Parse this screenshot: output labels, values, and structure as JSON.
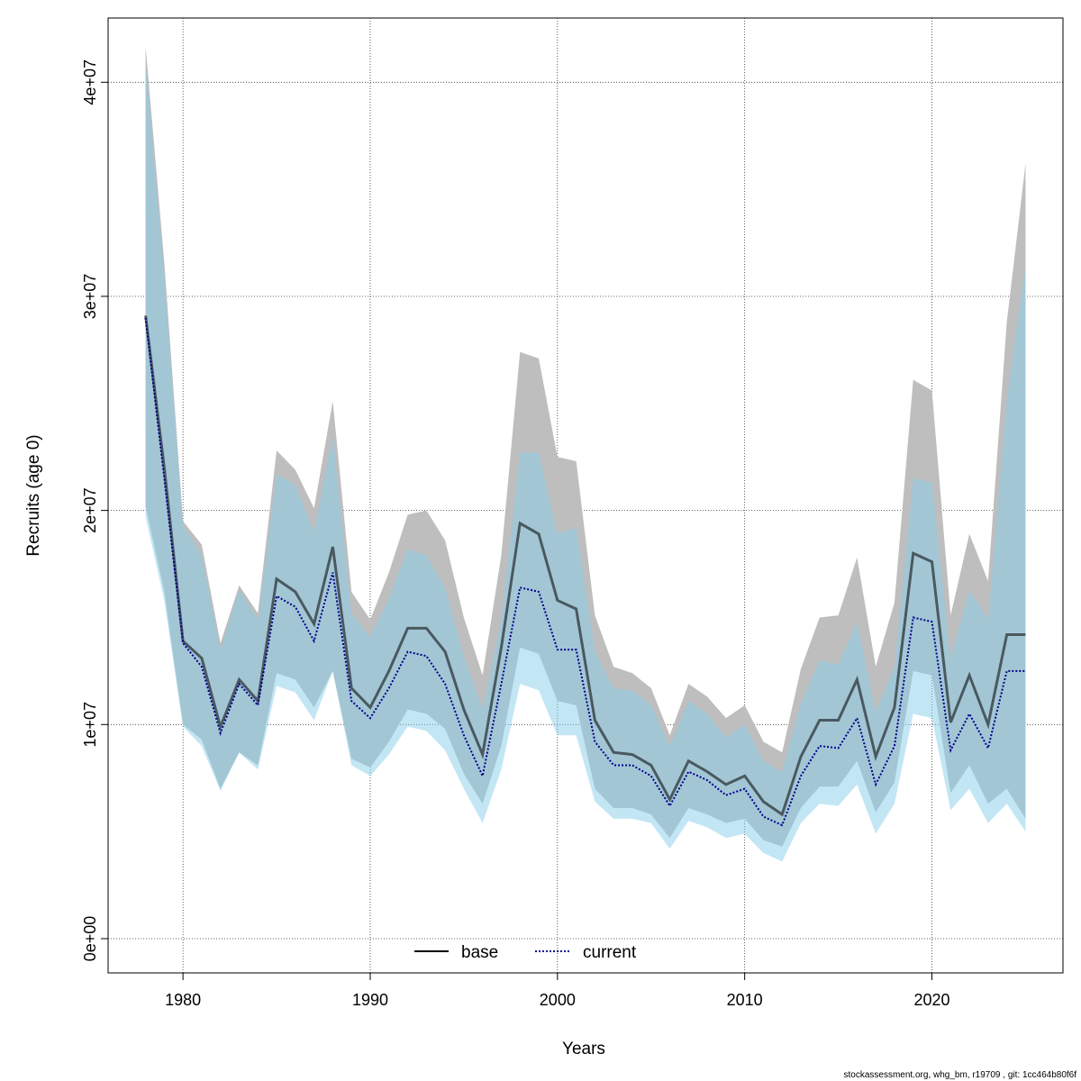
{
  "chart_data": {
    "type": "line",
    "title": "",
    "xlabel": "Years",
    "ylabel": "Recruits (age 0)",
    "xlim": [
      1976,
      2027
    ],
    "ylim": [
      -1600000.0,
      43000000.0
    ],
    "xticks": [
      1980,
      1990,
      2000,
      2010,
      2020
    ],
    "xtick_labels": [
      "1980",
      "1990",
      "2000",
      "2010",
      "2020"
    ],
    "yticks": [
      0,
      10000000,
      20000000,
      30000000,
      40000000
    ],
    "ytick_labels": [
      "0e+00",
      "1e+07",
      "2e+07",
      "3e+07",
      "4e+07"
    ],
    "grid": true,
    "legend_position": "bottom-center",
    "years": [
      1978,
      1979,
      1980,
      1981,
      1982,
      1983,
      1984,
      1985,
      1986,
      1987,
      1988,
      1989,
      1990,
      1991,
      1992,
      1993,
      1994,
      1995,
      1996,
      1997,
      1998,
      1999,
      2000,
      2001,
      2002,
      2003,
      2004,
      2005,
      2006,
      2007,
      2008,
      2009,
      2010,
      2011,
      2012,
      2013,
      2014,
      2015,
      2016,
      2017,
      2018,
      2019,
      2020,
      2021,
      2022,
      2023,
      2024,
      2025
    ],
    "unit_scale": 1000000,
    "series": [
      {
        "name": "base",
        "color": "#000000",
        "style": "solid",
        "values": [
          29.1,
          22.0,
          13.9,
          13.1,
          9.9,
          12.1,
          11.1,
          16.8,
          16.2,
          14.7,
          18.3,
          11.7,
          10.8,
          12.5,
          14.5,
          14.5,
          13.4,
          10.7,
          8.6,
          13.6,
          19.4,
          18.9,
          15.8,
          15.4,
          10.2,
          8.7,
          8.6,
          8.1,
          6.5,
          8.3,
          7.8,
          7.2,
          7.6,
          6.4,
          5.8,
          8.5,
          10.2,
          10.2,
          12.1,
          8.5,
          10.8,
          18.0,
          17.6,
          10.1,
          12.3,
          10.0,
          14.2,
          14.2
        ],
        "upper": [
          41.7,
          31.6,
          19.5,
          18.4,
          13.8,
          16.5,
          15.2,
          22.8,
          21.9,
          20.1,
          25.1,
          16.2,
          14.9,
          17.1,
          19.8,
          20.0,
          18.6,
          15.0,
          12.3,
          17.9,
          27.4,
          27.1,
          22.5,
          22.3,
          15.1,
          12.7,
          12.4,
          11.7,
          9.5,
          11.9,
          11.3,
          10.3,
          10.9,
          9.2,
          8.7,
          12.6,
          15.0,
          15.1,
          17.8,
          12.7,
          15.7,
          26.1,
          25.6,
          15.1,
          18.9,
          16.7,
          28.8,
          36.2
        ],
        "lower": [
          20.2,
          16.2,
          10.0,
          9.3,
          7.0,
          8.7,
          8.1,
          12.4,
          12.1,
          10.8,
          12.5,
          8.4,
          8.0,
          9.2,
          10.7,
          10.5,
          9.8,
          7.7,
          6.3,
          9.0,
          13.6,
          13.3,
          11.1,
          10.9,
          7.0,
          6.1,
          6.1,
          5.8,
          4.7,
          6.1,
          5.8,
          5.4,
          5.6,
          4.6,
          4.3,
          6.1,
          7.1,
          7.1,
          8.3,
          5.9,
          7.3,
          12.5,
          12.3,
          6.8,
          8.1,
          6.3,
          7.0,
          5.6
        ],
        "band_color": "#bebebe"
      },
      {
        "name": "current",
        "color": "#00008b",
        "style": "dotted",
        "values": [
          29.0,
          21.5,
          13.8,
          12.7,
          9.6,
          11.9,
          10.9,
          16.0,
          15.5,
          13.9,
          17.1,
          11.1,
          10.3,
          11.7,
          13.4,
          13.2,
          11.9,
          9.5,
          7.6,
          11.9,
          16.4,
          16.2,
          13.5,
          13.5,
          9.2,
          8.1,
          8.1,
          7.6,
          6.2,
          7.8,
          7.4,
          6.7,
          7.0,
          5.7,
          5.3,
          7.6,
          9.0,
          8.9,
          10.3,
          7.2,
          9.0,
          15.0,
          14.8,
          8.8,
          10.5,
          8.9,
          12.5,
          12.5
        ],
        "upper": [
          41.0,
          31.0,
          19.3,
          17.9,
          13.5,
          16.3,
          14.9,
          21.7,
          21.2,
          19.0,
          23.5,
          15.2,
          14.1,
          15.9,
          18.2,
          17.9,
          16.4,
          13.2,
          10.7,
          14.9,
          22.7,
          22.7,
          18.9,
          19.2,
          13.4,
          11.7,
          11.6,
          10.9,
          9.0,
          11.1,
          10.5,
          9.4,
          10.0,
          8.3,
          7.8,
          11.0,
          13.0,
          12.8,
          14.8,
          10.6,
          12.7,
          21.5,
          21.3,
          13.1,
          16.3,
          14.9,
          25.2,
          31.5
        ],
        "lower": [
          19.7,
          15.8,
          9.9,
          9.0,
          6.9,
          8.7,
          7.9,
          11.8,
          11.5,
          10.2,
          12.5,
          8.1,
          7.6,
          8.6,
          9.9,
          9.7,
          8.8,
          7.0,
          5.4,
          7.9,
          11.9,
          11.6,
          9.5,
          9.5,
          6.4,
          5.6,
          5.6,
          5.4,
          4.2,
          5.5,
          5.2,
          4.7,
          4.9,
          4.0,
          3.6,
          5.4,
          6.3,
          6.2,
          7.2,
          4.9,
          6.3,
          10.5,
          10.3,
          6.0,
          7.0,
          5.4,
          6.3,
          5.0
        ],
        "band_color": "#87ceeb"
      }
    ],
    "legend": [
      "base",
      "current"
    ],
    "footer": "stockassessment.org, whg_bm, r19709 , git: 1cc464b80f6f"
  }
}
